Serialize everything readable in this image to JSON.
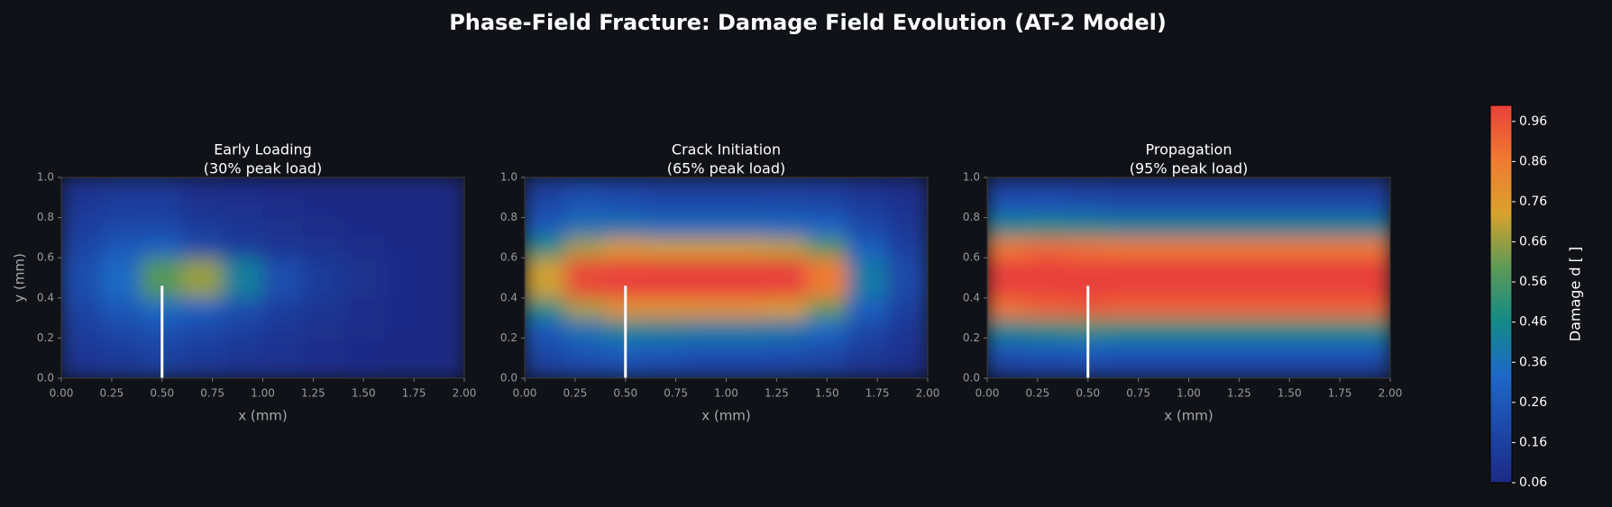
{
  "title": "Phase-Field Fracture: Damage Field Evolution (AT-2 Model)",
  "colorbar": {
    "label": "Damage d [ ]",
    "lim": [
      0.06,
      1.0
    ],
    "ticks": [
      0.06,
      0.16,
      0.26,
      0.36,
      0.46,
      0.56,
      0.66,
      0.76,
      0.86,
      0.96
    ],
    "cmap": [
      "#1b2a84",
      "#1d48a8",
      "#1f68c8",
      "#138a86",
      "#5d9a55",
      "#d9a22e",
      "#f07a32",
      "#e8403a"
    ]
  },
  "chart_data": [
    {
      "type": "heatmap",
      "title": [
        "Early Loading",
        "(30% peak load)"
      ],
      "xlabel": "x (mm)",
      "ylabel": "y (mm)",
      "xlim": [
        0,
        2
      ],
      "ylim": [
        0,
        1
      ],
      "xticks": [
        {
          "value": 0,
          "label": "0.00"
        },
        {
          "value": 0.25,
          "label": "0.25"
        },
        {
          "value": 0.5,
          "label": "0.50"
        },
        {
          "value": 0.75,
          "label": "0.75"
        },
        {
          "value": 1,
          "label": "1.00"
        },
        {
          "value": 1.25,
          "label": "1.25"
        },
        {
          "value": 1.5,
          "label": "1.50"
        },
        {
          "value": 1.75,
          "label": "1.75"
        },
        {
          "value": 2,
          "label": "2.00"
        }
      ],
      "yticks": [
        {
          "value": 0,
          "label": "0.0"
        },
        {
          "value": 0.2,
          "label": "0.2"
        },
        {
          "value": 0.4,
          "label": "0.4"
        },
        {
          "value": 0.6,
          "label": "0.6"
        },
        {
          "value": 0.8,
          "label": "0.8"
        },
        {
          "value": 1,
          "label": "1.0"
        }
      ],
      "notch": {
        "x": 0.5,
        "y0": 0,
        "y1": 0.46,
        "color": "#ffffff"
      },
      "x": [
        0.1,
        0.3,
        0.5,
        0.7,
        0.9,
        1.1,
        1.3,
        1.5,
        1.7,
        1.9
      ],
      "y": [
        0.05,
        0.15,
        0.25,
        0.35,
        0.45,
        0.55,
        0.65,
        0.75,
        0.85,
        0.95
      ],
      "values": [
        [
          0.1,
          0.12,
          0.14,
          0.12,
          0.1,
          0.09,
          0.08,
          0.07,
          0.06,
          0.06
        ],
        [
          0.12,
          0.15,
          0.18,
          0.15,
          0.12,
          0.1,
          0.08,
          0.07,
          0.06,
          0.06
        ],
        [
          0.15,
          0.2,
          0.24,
          0.2,
          0.16,
          0.12,
          0.09,
          0.08,
          0.07,
          0.06
        ],
        [
          0.18,
          0.26,
          0.34,
          0.3,
          0.22,
          0.15,
          0.11,
          0.08,
          0.07,
          0.06
        ],
        [
          0.22,
          0.34,
          0.58,
          0.66,
          0.42,
          0.22,
          0.13,
          0.09,
          0.07,
          0.06
        ],
        [
          0.22,
          0.34,
          0.58,
          0.66,
          0.42,
          0.22,
          0.13,
          0.09,
          0.07,
          0.06
        ],
        [
          0.18,
          0.26,
          0.3,
          0.2,
          0.15,
          0.11,
          0.09,
          0.08,
          0.07,
          0.06
        ],
        [
          0.15,
          0.2,
          0.2,
          0.14,
          0.11,
          0.09,
          0.08,
          0.07,
          0.06,
          0.06
        ],
        [
          0.12,
          0.15,
          0.15,
          0.1,
          0.09,
          0.08,
          0.07,
          0.06,
          0.06,
          0.06
        ],
        [
          0.1,
          0.12,
          0.12,
          0.08,
          0.07,
          0.07,
          0.06,
          0.06,
          0.06,
          0.06
        ]
      ]
    },
    {
      "type": "heatmap",
      "title": [
        "Crack Initiation",
        "(65% peak load)"
      ],
      "xlabel": "x (mm)",
      "xlim": [
        0,
        2
      ],
      "ylim": [
        0,
        1
      ],
      "xticks": [
        {
          "value": 0,
          "label": "0.00"
        },
        {
          "value": 0.25,
          "label": "0.25"
        },
        {
          "value": 0.5,
          "label": "0.50"
        },
        {
          "value": 0.75,
          "label": "0.75"
        },
        {
          "value": 1,
          "label": "1.00"
        },
        {
          "value": 1.25,
          "label": "1.25"
        },
        {
          "value": 1.5,
          "label": "1.50"
        },
        {
          "value": 1.75,
          "label": "1.75"
        },
        {
          "value": 2,
          "label": "2.00"
        }
      ],
      "yticks": [
        {
          "value": 0,
          "label": "0.0"
        },
        {
          "value": 0.2,
          "label": "0.2"
        },
        {
          "value": 0.4,
          "label": "0.4"
        },
        {
          "value": 0.6,
          "label": "0.6"
        },
        {
          "value": 0.8,
          "label": "0.8"
        },
        {
          "value": 1,
          "label": "1.0"
        }
      ],
      "notch": {
        "x": 0.5,
        "y0": 0,
        "y1": 0.46,
        "color": "#ffffff"
      },
      "x": [
        0.1,
        0.3,
        0.5,
        0.7,
        0.9,
        1.1,
        1.3,
        1.5,
        1.7,
        1.9
      ],
      "y": [
        0.05,
        0.15,
        0.25,
        0.35,
        0.45,
        0.55,
        0.65,
        0.75,
        0.85,
        0.95
      ],
      "values": [
        [
          0.14,
          0.18,
          0.2,
          0.18,
          0.16,
          0.16,
          0.16,
          0.14,
          0.1,
          0.08
        ],
        [
          0.2,
          0.26,
          0.3,
          0.28,
          0.26,
          0.26,
          0.25,
          0.22,
          0.14,
          0.1
        ],
        [
          0.28,
          0.38,
          0.45,
          0.44,
          0.42,
          0.42,
          0.4,
          0.34,
          0.2,
          0.12
        ],
        [
          0.48,
          0.68,
          0.78,
          0.78,
          0.78,
          0.78,
          0.74,
          0.6,
          0.3,
          0.16
        ],
        [
          0.72,
          0.98,
          1.0,
          1.0,
          1.0,
          1.0,
          1.0,
          0.86,
          0.4,
          0.2
        ],
        [
          0.72,
          0.98,
          1.0,
          1.0,
          1.0,
          1.0,
          1.0,
          0.86,
          0.4,
          0.2
        ],
        [
          0.48,
          0.68,
          0.74,
          0.72,
          0.72,
          0.72,
          0.7,
          0.58,
          0.3,
          0.16
        ],
        [
          0.28,
          0.38,
          0.38,
          0.36,
          0.36,
          0.36,
          0.35,
          0.32,
          0.2,
          0.12
        ],
        [
          0.2,
          0.26,
          0.24,
          0.22,
          0.22,
          0.22,
          0.21,
          0.2,
          0.14,
          0.1
        ],
        [
          0.14,
          0.18,
          0.16,
          0.14,
          0.14,
          0.14,
          0.14,
          0.13,
          0.1,
          0.08
        ]
      ]
    },
    {
      "type": "heatmap",
      "title": [
        "Propagation",
        "(95% peak load)"
      ],
      "xlabel": "x (mm)",
      "xlim": [
        0,
        2
      ],
      "ylim": [
        0,
        1
      ],
      "xticks": [
        {
          "value": 0,
          "label": "0.00"
        },
        {
          "value": 0.25,
          "label": "0.25"
        },
        {
          "value": 0.5,
          "label": "0.50"
        },
        {
          "value": 0.75,
          "label": "0.75"
        },
        {
          "value": 1,
          "label": "1.00"
        },
        {
          "value": 1.25,
          "label": "1.25"
        },
        {
          "value": 1.5,
          "label": "1.50"
        },
        {
          "value": 1.75,
          "label": "1.75"
        },
        {
          "value": 2,
          "label": "2.00"
        }
      ],
      "yticks": [
        {
          "value": 0,
          "label": "0.0"
        },
        {
          "value": 0.2,
          "label": "0.2"
        },
        {
          "value": 0.4,
          "label": "0.4"
        },
        {
          "value": 0.6,
          "label": "0.6"
        },
        {
          "value": 0.8,
          "label": "0.8"
        },
        {
          "value": 1,
          "label": "1.0"
        }
      ],
      "notch": {
        "x": 0.5,
        "y0": 0,
        "y1": 0.46,
        "color": "#ffffff"
      },
      "x": [
        0.1,
        0.3,
        0.5,
        0.7,
        0.9,
        1.1,
        1.3,
        1.5,
        1.7,
        1.9
      ],
      "y": [
        0.05,
        0.15,
        0.25,
        0.35,
        0.45,
        0.55,
        0.65,
        0.75,
        0.85,
        0.95
      ],
      "values": [
        [
          0.15,
          0.16,
          0.17,
          0.16,
          0.16,
          0.16,
          0.16,
          0.16,
          0.16,
          0.16
        ],
        [
          0.26,
          0.28,
          0.3,
          0.28,
          0.28,
          0.28,
          0.28,
          0.28,
          0.28,
          0.28
        ],
        [
          0.46,
          0.5,
          0.52,
          0.5,
          0.5,
          0.5,
          0.5,
          0.5,
          0.5,
          0.5
        ],
        [
          0.88,
          0.92,
          0.94,
          0.92,
          0.92,
          0.92,
          0.92,
          0.92,
          0.92,
          0.92
        ],
        [
          1.0,
          1.0,
          1.0,
          1.0,
          1.0,
          1.0,
          1.0,
          1.0,
          1.0,
          1.0
        ],
        [
          1.0,
          1.0,
          1.0,
          1.0,
          1.0,
          1.0,
          1.0,
          1.0,
          1.0,
          1.0
        ],
        [
          0.86,
          0.9,
          0.88,
          0.86,
          0.86,
          0.86,
          0.86,
          0.86,
          0.86,
          0.86
        ],
        [
          0.46,
          0.48,
          0.46,
          0.44,
          0.44,
          0.44,
          0.44,
          0.44,
          0.44,
          0.44
        ],
        [
          0.26,
          0.26,
          0.24,
          0.22,
          0.22,
          0.22,
          0.22,
          0.22,
          0.22,
          0.22
        ],
        [
          0.15,
          0.15,
          0.14,
          0.13,
          0.13,
          0.13,
          0.13,
          0.13,
          0.13,
          0.13
        ]
      ]
    }
  ]
}
